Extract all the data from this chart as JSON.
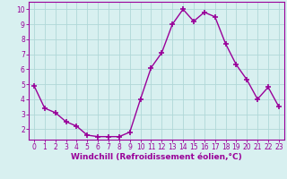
{
  "x": [
    0,
    1,
    2,
    3,
    4,
    5,
    6,
    7,
    8,
    9,
    10,
    11,
    12,
    13,
    14,
    15,
    16,
    17,
    18,
    19,
    20,
    21,
    22,
    23
  ],
  "y": [
    4.9,
    3.4,
    3.1,
    2.5,
    2.2,
    1.6,
    1.5,
    1.5,
    1.5,
    1.8,
    4.0,
    6.1,
    7.1,
    9.0,
    10.0,
    9.2,
    9.8,
    9.5,
    7.7,
    6.3,
    5.3,
    4.0,
    4.8,
    3.5
  ],
  "line_color": "#990099",
  "marker": "+",
  "marker_size": 4,
  "linewidth": 1.0,
  "xlabel": "Windchill (Refroidissement éolien,°C)",
  "xlabel_fontsize": 6.5,
  "xlim": [
    -0.5,
    23.5
  ],
  "ylim": [
    1.3,
    10.5
  ],
  "yticks": [
    2,
    3,
    4,
    5,
    6,
    7,
    8,
    9,
    10
  ],
  "xticks": [
    0,
    1,
    2,
    3,
    4,
    5,
    6,
    7,
    8,
    9,
    10,
    11,
    12,
    13,
    14,
    15,
    16,
    17,
    18,
    19,
    20,
    21,
    22,
    23
  ],
  "background_color": "#d8f0f0",
  "grid_color": "#b0d8d8",
  "tick_fontsize": 5.5,
  "line_purple": "#990099"
}
